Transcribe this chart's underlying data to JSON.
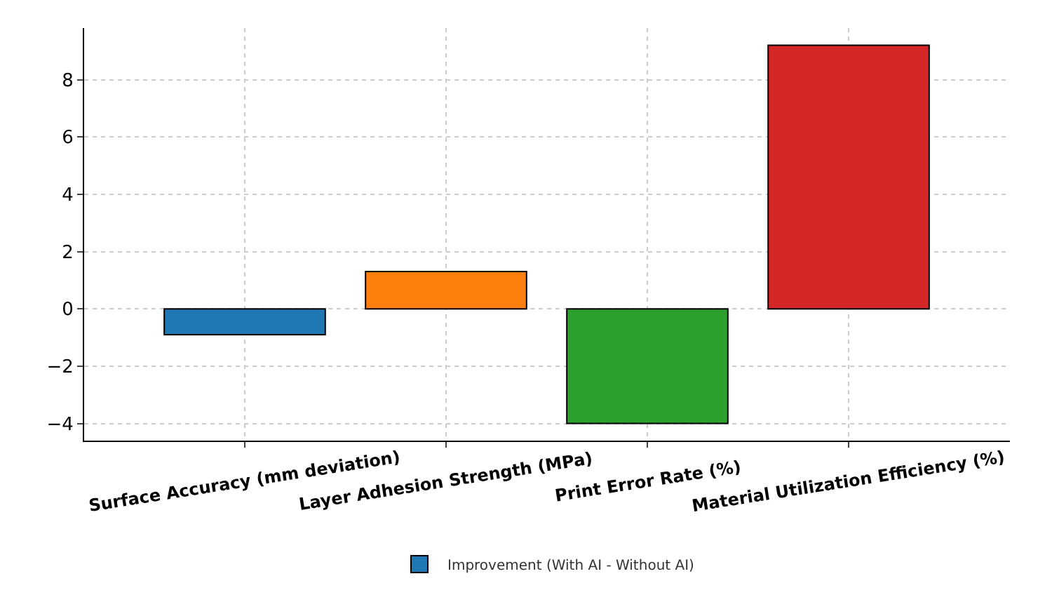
{
  "chart_data": {
    "type": "bar",
    "categories": [
      "Surface Accuracy (mm deviation)",
      "Layer Adhesion Strength (MPa)",
      "Print Error Rate (%)",
      "Material Utilization Efficiency (%)"
    ],
    "colors": [
      "#1f77b4",
      "#ff7f0e",
      "#2ca02c",
      "#d62728"
    ],
    "series": [
      {
        "name": "Improvement (With AI - Without AI)",
        "values": [
          -0.9,
          1.3,
          -4.0,
          9.2
        ]
      }
    ],
    "ylim": [
      -4.6,
      9.8
    ],
    "yticks": [
      {
        "value": -4,
        "label": "−4"
      },
      {
        "value": -2,
        "label": "−2"
      },
      0,
      2,
      4,
      6,
      8
    ],
    "grid": true,
    "legend": "bottom"
  }
}
